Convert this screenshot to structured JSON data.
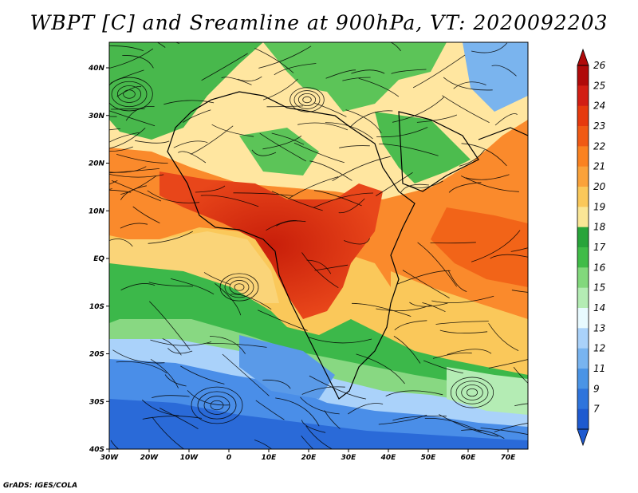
{
  "title": "WBPT [C] and Sreamline at 900hPa, VT: 2020092203",
  "credit": "GrADS: IGES/COLA",
  "map": {
    "lat_range": [
      -40,
      45
    ],
    "lon_range": [
      -30,
      75
    ],
    "lat_ticks": [
      "40N",
      "30N",
      "20N",
      "10N",
      "EQ",
      "10S",
      "20S",
      "30S",
      "40S"
    ],
    "lon_ticks": [
      "30W",
      "20W",
      "10W",
      "0",
      "10E",
      "20E",
      "30E",
      "40E",
      "50E",
      "60E",
      "70E"
    ],
    "regions": [
      {
        "name": "north-africa-tan",
        "color": "#ffe6a0"
      },
      {
        "name": "sahel-orange",
        "color": "#ff8a30"
      },
      {
        "name": "central-africa-red",
        "color": "#e63010"
      },
      {
        "name": "indian-ocean-orange",
        "color": "#ff9a38"
      },
      {
        "name": "south-atlantic-green",
        "color": "#3cb84a"
      },
      {
        "name": "south-atlantic-blue",
        "color": "#4a8ee8"
      },
      {
        "name": "southern-ocean-blue",
        "color": "#2a6ad8"
      }
    ]
  },
  "colorbar": {
    "labels": [
      "26",
      "25",
      "24",
      "23",
      "22",
      "21",
      "20",
      "19",
      "18",
      "17",
      "16",
      "15",
      "14",
      "13",
      "12",
      "11",
      "9",
      "7"
    ],
    "colors": [
      "#b00a0a",
      "#d21e14",
      "#e63a0e",
      "#f05a14",
      "#fa8220",
      "#faa23a",
      "#fac85a",
      "#fae696",
      "#28a43a",
      "#40bc48",
      "#82d87c",
      "#b4ecb4",
      "#e8faff",
      "#aad2fa",
      "#78b4f0",
      "#4a94e6",
      "#2e74dc",
      "#1e5ad0"
    ]
  }
}
